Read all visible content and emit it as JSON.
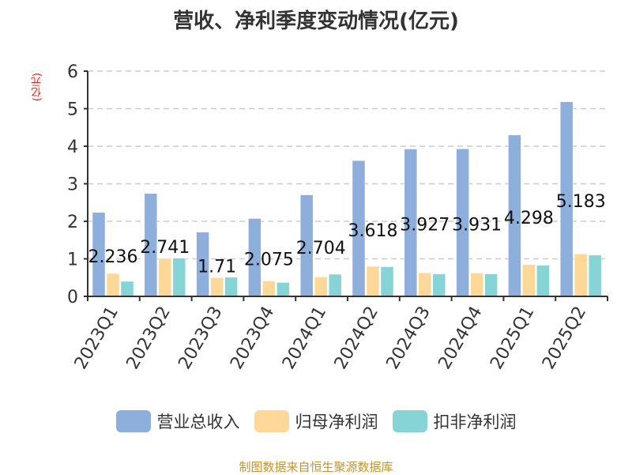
{
  "title": "营收、净利季度变动情况(亿元)",
  "unit_label": "(亿元)",
  "source": "制图数据来自恒生聚源数据库",
  "colors": {
    "revenue": "#8eaedb",
    "net_profit": "#fdd898",
    "deducted_net_profit": "#87d4d7",
    "unit": "#e0201a",
    "source": "#c0942f"
  },
  "legend": [
    {
      "label": "营业总收入",
      "color": "#8eaedb"
    },
    {
      "label": "归母净利润",
      "color": "#fdd898"
    },
    {
      "label": "扣非净利润",
      "color": "#87d4d7"
    }
  ],
  "chart_data": {
    "type": "bar",
    "title": "营收、净利季度变动情况(亿元)",
    "xlabel": "",
    "ylabel": "(亿元)",
    "ylim": [
      0,
      6
    ],
    "yticks": [
      0,
      1,
      2,
      3,
      4,
      5,
      6
    ],
    "grid": true,
    "legend_position": "bottom",
    "categories": [
      "2023Q1",
      "2023Q2",
      "2023Q3",
      "2023Q4",
      "2024Q1",
      "2024Q2",
      "2024Q3",
      "2024Q4",
      "2025Q1",
      "2025Q2"
    ],
    "series": [
      {
        "name": "营业总收入",
        "values": [
          2.236,
          2.741,
          1.71,
          2.075,
          2.704,
          3.618,
          3.927,
          3.931,
          4.298,
          5.183
        ],
        "labels": [
          "2.236",
          "2.741",
          "1.71",
          "2.075",
          "2.704",
          "3.618",
          "3.927",
          "3.931",
          "4.298",
          "5.183"
        ]
      },
      {
        "name": "归母净利润",
        "values": [
          0.61,
          1.01,
          0.5,
          0.41,
          0.52,
          0.8,
          0.63,
          0.62,
          0.85,
          1.13
        ]
      },
      {
        "name": "扣非净利润",
        "values": [
          0.4,
          1.02,
          0.51,
          0.37,
          0.59,
          0.79,
          0.6,
          0.6,
          0.83,
          1.1
        ]
      }
    ]
  }
}
